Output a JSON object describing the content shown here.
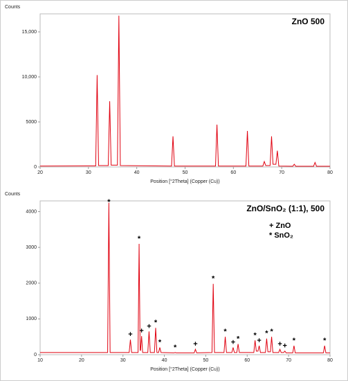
{
  "chart_data": [
    {
      "type": "line",
      "title": "ZnO 500",
      "ylabel": "Counts",
      "xlabel": "Position [°2Theta] (Copper (Cu))",
      "xlim": [
        20,
        80
      ],
      "ylim": [
        0,
        17000
      ],
      "xticks": [
        20,
        30,
        40,
        50,
        60,
        70,
        80
      ],
      "yticks": [
        0,
        5000,
        {
          "value": 10000,
          "label": "10,000"
        },
        {
          "value": 15000,
          "label": "15,000"
        }
      ],
      "grid": false,
      "x": [
        20,
        31.5,
        31.8,
        32.1,
        34.1,
        34.4,
        34.7,
        36.0,
        36.3,
        36.6,
        47.2,
        47.5,
        47.8,
        56.3,
        56.6,
        56.9,
        62.6,
        62.9,
        63.2,
        66.1,
        66.4,
        66.7,
        67.6,
        67.9,
        68.2,
        68.8,
        69.1,
        69.4,
        72.3,
        72.6,
        72.9,
        76.6,
        76.9,
        77.2,
        80
      ],
      "series": [
        {
          "name": "ZnO 500",
          "color": "#e0000f",
          "values": [
            100,
            120,
            10200,
            150,
            150,
            7300,
            200,
            200,
            16800,
            150,
            100,
            3400,
            100,
            100,
            4700,
            100,
            100,
            4000,
            100,
            100,
            600,
            150,
            150,
            3400,
            300,
            300,
            1800,
            100,
            80,
            300,
            80,
            80,
            500,
            80,
            80
          ]
        }
      ]
    },
    {
      "type": "line",
      "title": "ZnO/SnO₂ (1:1), 500",
      "ylabel": "Counts",
      "xlabel": "Position [°2Theta] (Copper (Cu))",
      "xlim": [
        10,
        80
      ],
      "ylim": [
        0,
        4300
      ],
      "xticks": [
        10,
        20,
        30,
        40,
        50,
        60,
        70,
        80
      ],
      "yticks": [
        0,
        1000,
        2000,
        3000,
        4000
      ],
      "grid": false,
      "notes": [
        "+ ZnO",
        "* SnO₂"
      ],
      "x": [
        10,
        26.3,
        26.6,
        26.9,
        31.5,
        31.8,
        32.1,
        33.65,
        33.9,
        34.15,
        34.25,
        34.5,
        34.75,
        36.0,
        36.3,
        36.6,
        37.6,
        37.9,
        38.2,
        38.6,
        38.9,
        39.2,
        42.3,
        42.6,
        42.9,
        47.2,
        47.5,
        47.8,
        51.5,
        51.8,
        52.1,
        54.4,
        54.7,
        55.0,
        56.3,
        56.6,
        56.9,
        57.5,
        57.8,
        58.1,
        61.6,
        61.9,
        62.2,
        62.6,
        62.9,
        63.2,
        64.4,
        64.7,
        65.0,
        65.6,
        65.9,
        66.2,
        67.6,
        67.9,
        68.2,
        68.8,
        69.1,
        69.4,
        71.0,
        71.3,
        71.6,
        78.4,
        78.7,
        79.0,
        80
      ],
      "series": [
        {
          "name": "ZnO/SnO₂ (1:1), 500",
          "color": "#e0000f",
          "values": [
            60,
            60,
            4250,
            60,
            60,
            420,
            60,
            60,
            3100,
            120,
            120,
            520,
            60,
            60,
            650,
            60,
            60,
            750,
            60,
            60,
            200,
            60,
            50,
            60,
            50,
            50,
            150,
            50,
            60,
            1980,
            60,
            60,
            500,
            60,
            60,
            200,
            60,
            60,
            300,
            60,
            60,
            400,
            100,
            100,
            250,
            60,
            60,
            450,
            80,
            80,
            500,
            60,
            60,
            150,
            60,
            60,
            100,
            50,
            50,
            250,
            50,
            50,
            250,
            50,
            50
          ]
        }
      ],
      "annotations": [
        {
          "text": "*",
          "x": 26.6,
          "y": 4250
        },
        {
          "text": "+",
          "x": 31.8,
          "y": 420
        },
        {
          "text": "*",
          "x": 33.9,
          "y": 3100
        },
        {
          "text": "+",
          "x": 34.5,
          "y": 520
        },
        {
          "text": "+",
          "x": 36.3,
          "y": 650
        },
        {
          "text": "*",
          "x": 37.9,
          "y": 750
        },
        {
          "text": "*",
          "x": 38.9,
          "y": 200
        },
        {
          "text": "*",
          "x": 42.6,
          "y": 60
        },
        {
          "text": "+",
          "x": 47.5,
          "y": 150
        },
        {
          "text": "*",
          "x": 51.8,
          "y": 1980
        },
        {
          "text": "*",
          "x": 54.7,
          "y": 500
        },
        {
          "text": "+",
          "x": 56.6,
          "y": 200
        },
        {
          "text": "*",
          "x": 57.8,
          "y": 300
        },
        {
          "text": "*",
          "x": 61.9,
          "y": 400
        },
        {
          "text": "+",
          "x": 62.9,
          "y": 250
        },
        {
          "text": "*",
          "x": 64.7,
          "y": 450
        },
        {
          "text": "*",
          "x": 65.9,
          "y": 500
        },
        {
          "text": "+",
          "x": 67.9,
          "y": 150
        },
        {
          "text": "+",
          "x": 69.1,
          "y": 100
        },
        {
          "text": "*",
          "x": 71.3,
          "y": 250
        },
        {
          "text": "*",
          "x": 78.7,
          "y": 250
        }
      ]
    }
  ]
}
